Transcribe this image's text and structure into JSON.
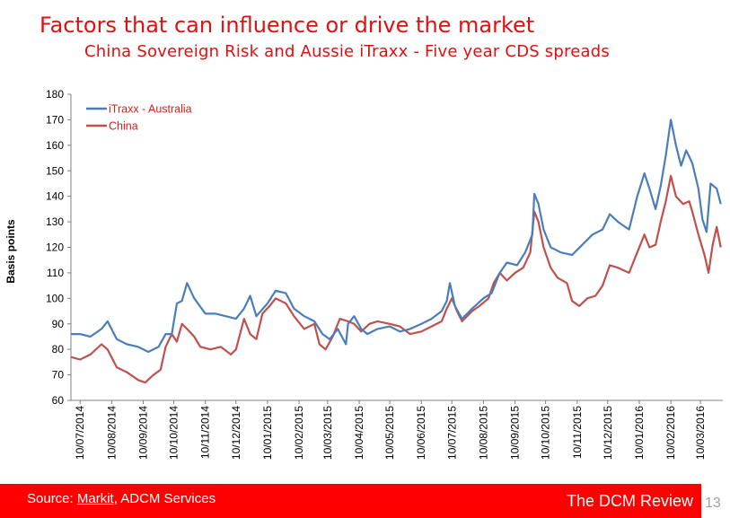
{
  "slide": {
    "title": "Factors that can influence or drive the market",
    "subtitle": "China Sovereign Risk and Aussie iTraxx - Five year CDS spreads",
    "page_number": "13"
  },
  "footer": {
    "source_prefix": "Source: ",
    "source_link": "Markit",
    "source_rest": ", ADCM Services",
    "brand": "The DCM Review",
    "background": "#ff0000"
  },
  "chart_data": {
    "type": "line",
    "ylabel": "Basis points",
    "xlabel": "",
    "ylim": [
      60,
      180
    ],
    "yticks": [
      60,
      70,
      80,
      90,
      100,
      110,
      120,
      130,
      140,
      150,
      160,
      170,
      180
    ],
    "x_tick_labels": [
      "10/07/2014",
      "10/08/2014",
      "10/09/2014",
      "10/10/2014",
      "10/11/2014",
      "10/12/2014",
      "10/01/2015",
      "10/02/2015",
      "10/03/2015",
      "10/04/2015",
      "10/05/2015",
      "10/06/2015",
      "10/07/2015",
      "10/08/2015",
      "10/09/2015",
      "10/10/2015",
      "10/11/2015",
      "10/12/2015",
      "10/01/2016",
      "10/02/2016",
      "10/03/2016"
    ],
    "grid": false,
    "legend_position": "top-left",
    "series": [
      {
        "name": "iTraxx - Australia",
        "color": "#4a7ebb",
        "points": [
          [
            "2014-07-01",
            86
          ],
          [
            "2014-07-10",
            86
          ],
          [
            "2014-07-20",
            85
          ],
          [
            "2014-07-31",
            88
          ],
          [
            "2014-08-06",
            91
          ],
          [
            "2014-08-15",
            84
          ],
          [
            "2014-08-25",
            82
          ],
          [
            "2014-09-05",
            81
          ],
          [
            "2014-09-15",
            79
          ],
          [
            "2014-09-25",
            81
          ],
          [
            "2014-10-02",
            86
          ],
          [
            "2014-10-08",
            86
          ],
          [
            "2014-10-13",
            98
          ],
          [
            "2014-10-18",
            99
          ],
          [
            "2014-10-23",
            106
          ],
          [
            "2014-10-30",
            100
          ],
          [
            "2014-11-10",
            94
          ],
          [
            "2014-11-20",
            94
          ],
          [
            "2014-11-30",
            93
          ],
          [
            "2014-12-10",
            92
          ],
          [
            "2014-12-18",
            96
          ],
          [
            "2014-12-24",
            101
          ],
          [
            "2014-12-30",
            93
          ],
          [
            "2015-01-10",
            98
          ],
          [
            "2015-01-18",
            103
          ],
          [
            "2015-01-28",
            102
          ],
          [
            "2015-02-05",
            96
          ],
          [
            "2015-02-15",
            93
          ],
          [
            "2015-02-25",
            91
          ],
          [
            "2015-03-05",
            86
          ],
          [
            "2015-03-12",
            84
          ],
          [
            "2015-03-20",
            88
          ],
          [
            "2015-03-28",
            82
          ],
          [
            "2015-03-30",
            90
          ],
          [
            "2015-04-05",
            93
          ],
          [
            "2015-04-12",
            88
          ],
          [
            "2015-04-18",
            86
          ],
          [
            "2015-04-28",
            88
          ],
          [
            "2015-05-10",
            89
          ],
          [
            "2015-05-20",
            87
          ],
          [
            "2015-05-30",
            88
          ],
          [
            "2015-06-10",
            90
          ],
          [
            "2015-06-20",
            92
          ],
          [
            "2015-06-30",
            95
          ],
          [
            "2015-07-05",
            99
          ],
          [
            "2015-07-08",
            106
          ],
          [
            "2015-07-13",
            97
          ],
          [
            "2015-07-20",
            92
          ],
          [
            "2015-07-30",
            96
          ],
          [
            "2015-08-10",
            100
          ],
          [
            "2015-08-18",
            102
          ],
          [
            "2015-08-26",
            110
          ],
          [
            "2015-09-02",
            114
          ],
          [
            "2015-09-12",
            113
          ],
          [
            "2015-09-20",
            118
          ],
          [
            "2015-09-27",
            125
          ],
          [
            "2015-09-29",
            141
          ],
          [
            "2015-10-03",
            137
          ],
          [
            "2015-10-08",
            127
          ],
          [
            "2015-10-15",
            120
          ],
          [
            "2015-10-25",
            118
          ],
          [
            "2015-11-05",
            117
          ],
          [
            "2015-11-15",
            121
          ],
          [
            "2015-11-25",
            125
          ],
          [
            "2015-12-05",
            127
          ],
          [
            "2015-12-12",
            133
          ],
          [
            "2015-12-20",
            130
          ],
          [
            "2015-12-31",
            127
          ],
          [
            "2016-01-08",
            140
          ],
          [
            "2016-01-15",
            149
          ],
          [
            "2016-01-20",
            143
          ],
          [
            "2016-01-26",
            135
          ],
          [
            "2016-01-31",
            144
          ],
          [
            "2016-02-05",
            156
          ],
          [
            "2016-02-10",
            170
          ],
          [
            "2016-02-15",
            160
          ],
          [
            "2016-02-20",
            152
          ],
          [
            "2016-02-25",
            158
          ],
          [
            "2016-03-02",
            153
          ],
          [
            "2016-03-08",
            143
          ],
          [
            "2016-03-12",
            131
          ],
          [
            "2016-03-16",
            126
          ],
          [
            "2016-03-20",
            145
          ],
          [
            "2016-03-26",
            143
          ],
          [
            "2016-03-30",
            137
          ]
        ]
      },
      {
        "name": "China",
        "color": "#c0504d",
        "points": [
          [
            "2014-07-01",
            77
          ],
          [
            "2014-07-10",
            76
          ],
          [
            "2014-07-20",
            78
          ],
          [
            "2014-07-31",
            82
          ],
          [
            "2014-08-06",
            80
          ],
          [
            "2014-08-15",
            73
          ],
          [
            "2014-08-25",
            71
          ],
          [
            "2014-09-05",
            68
          ],
          [
            "2014-09-12",
            67
          ],
          [
            "2014-09-20",
            70
          ],
          [
            "2014-09-27",
            72
          ],
          [
            "2014-10-02",
            81
          ],
          [
            "2014-10-08",
            86
          ],
          [
            "2014-10-13",
            83
          ],
          [
            "2014-10-18",
            90
          ],
          [
            "2014-10-23",
            88
          ],
          [
            "2014-10-30",
            85
          ],
          [
            "2014-11-05",
            81
          ],
          [
            "2014-11-15",
            80
          ],
          [
            "2014-11-25",
            81
          ],
          [
            "2014-12-05",
            78
          ],
          [
            "2014-12-10",
            80
          ],
          [
            "2014-12-18",
            92
          ],
          [
            "2014-12-24",
            86
          ],
          [
            "2014-12-30",
            84
          ],
          [
            "2015-01-05",
            94
          ],
          [
            "2015-01-12",
            97
          ],
          [
            "2015-01-18",
            100
          ],
          [
            "2015-01-28",
            98
          ],
          [
            "2015-02-05",
            93
          ],
          [
            "2015-02-15",
            88
          ],
          [
            "2015-02-25",
            90
          ],
          [
            "2015-03-02",
            82
          ],
          [
            "2015-03-08",
            80
          ],
          [
            "2015-03-15",
            85
          ],
          [
            "2015-03-22",
            92
          ],
          [
            "2015-03-30",
            91
          ],
          [
            "2015-04-05",
            90
          ],
          [
            "2015-04-12",
            87
          ],
          [
            "2015-04-20",
            90
          ],
          [
            "2015-04-28",
            91
          ],
          [
            "2015-05-10",
            90
          ],
          [
            "2015-05-20",
            89
          ],
          [
            "2015-05-30",
            86
          ],
          [
            "2015-06-10",
            87
          ],
          [
            "2015-06-20",
            89
          ],
          [
            "2015-06-30",
            91
          ],
          [
            "2015-07-05",
            96
          ],
          [
            "2015-07-10",
            100
          ],
          [
            "2015-07-15",
            95
          ],
          [
            "2015-07-20",
            91
          ],
          [
            "2015-07-30",
            95
          ],
          [
            "2015-08-06",
            97
          ],
          [
            "2015-08-15",
            100
          ],
          [
            "2015-08-20",
            106
          ],
          [
            "2015-08-26",
            110
          ],
          [
            "2015-09-02",
            107
          ],
          [
            "2015-09-10",
            110
          ],
          [
            "2015-09-18",
            112
          ],
          [
            "2015-09-25",
            118
          ],
          [
            "2015-09-29",
            134
          ],
          [
            "2015-10-03",
            130
          ],
          [
            "2015-10-08",
            120
          ],
          [
            "2015-10-15",
            112
          ],
          [
            "2015-10-22",
            108
          ],
          [
            "2015-10-31",
            106
          ],
          [
            "2015-11-05",
            99
          ],
          [
            "2015-11-12",
            97
          ],
          [
            "2015-11-20",
            100
          ],
          [
            "2015-11-28",
            101
          ],
          [
            "2015-12-05",
            105
          ],
          [
            "2015-12-12",
            113
          ],
          [
            "2015-12-20",
            112
          ],
          [
            "2015-12-31",
            110
          ],
          [
            "2016-01-08",
            118
          ],
          [
            "2016-01-15",
            125
          ],
          [
            "2016-01-20",
            120
          ],
          [
            "2016-01-26",
            121
          ],
          [
            "2016-01-31",
            130
          ],
          [
            "2016-02-05",
            138
          ],
          [
            "2016-02-10",
            148
          ],
          [
            "2016-02-15",
            140
          ],
          [
            "2016-02-22",
            137
          ],
          [
            "2016-02-28",
            138
          ],
          [
            "2016-03-02",
            134
          ],
          [
            "2016-03-08",
            125
          ],
          [
            "2016-03-14",
            117
          ],
          [
            "2016-03-18",
            110
          ],
          [
            "2016-03-22",
            121
          ],
          [
            "2016-03-26",
            128
          ],
          [
            "2016-03-30",
            120
          ]
        ]
      }
    ]
  }
}
